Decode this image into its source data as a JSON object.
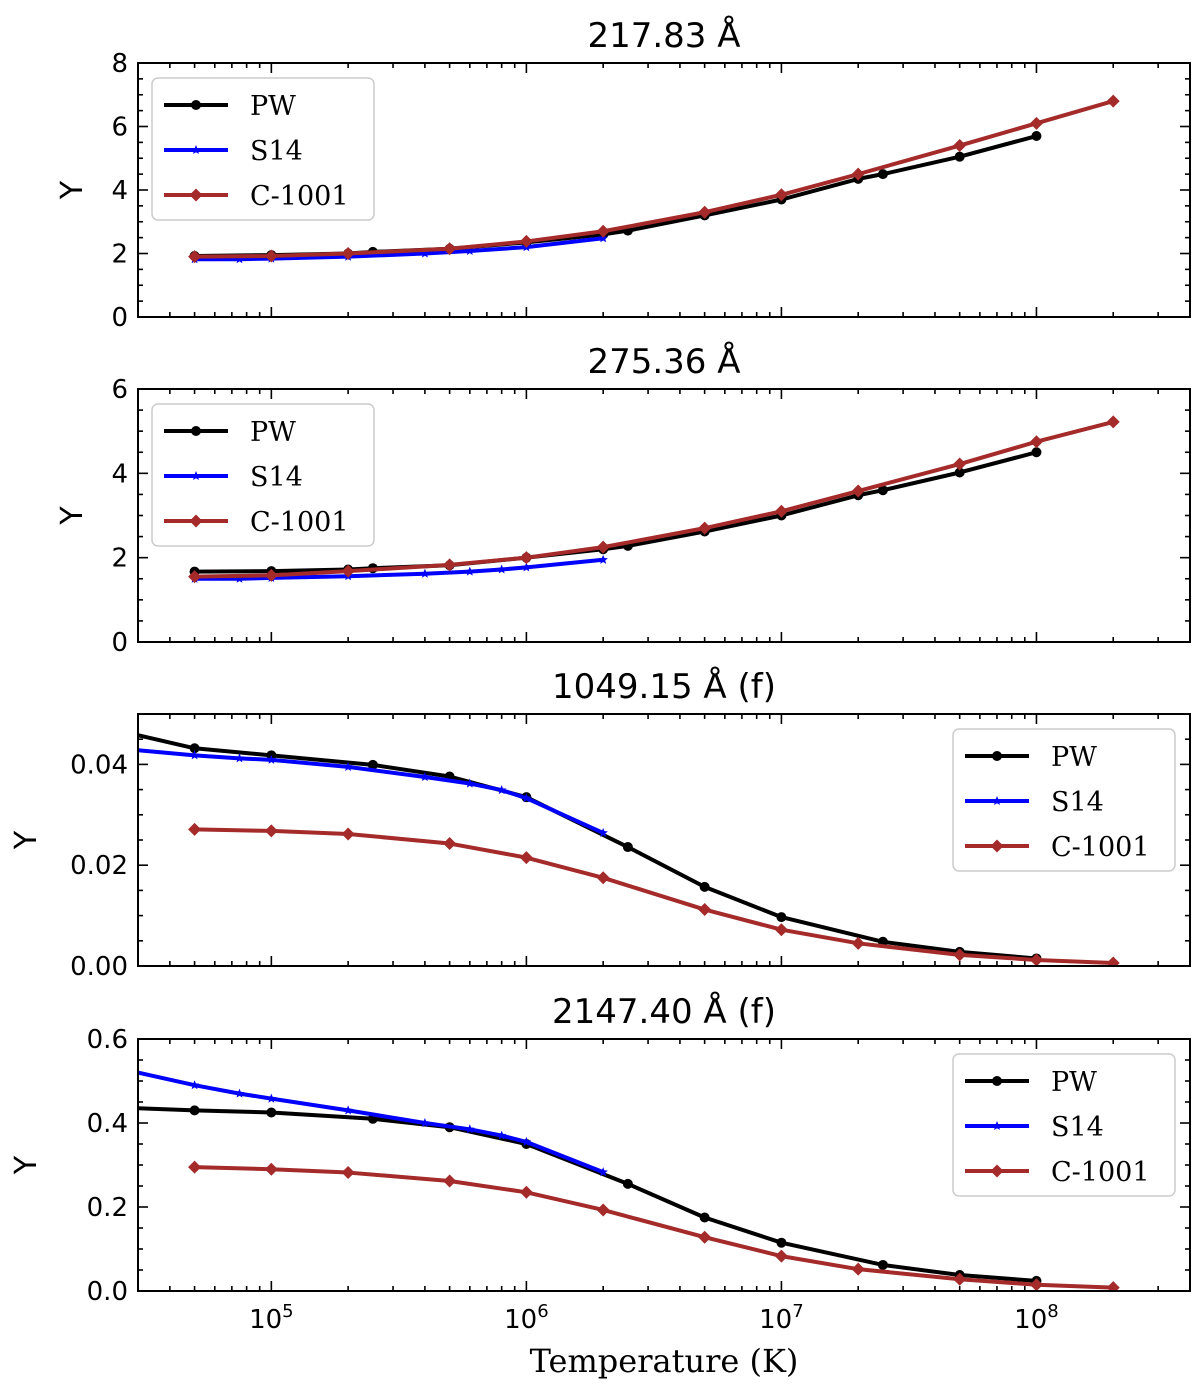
{
  "chart_data": [
    {
      "type": "line",
      "title": "217.83 Å",
      "ylabel": "Y",
      "xlabel": "",
      "xscale": "log",
      "xlim": [
        30000,
        400000000
      ],
      "ylim": [
        0,
        8
      ],
      "yticks": [
        0,
        2,
        4,
        6,
        8
      ],
      "ytick_labels": [
        "0",
        "2",
        "4",
        "6",
        "8"
      ],
      "legend": "upper-left",
      "series": [
        {
          "name": "PW",
          "color": "#000000",
          "marker": "circle",
          "x": [
            50000,
            100000,
            200000,
            250000,
            500000,
            1000000,
            2000000,
            2500000,
            5000000,
            10000000,
            20000000,
            25000000,
            50000000,
            100000000
          ],
          "y": [
            1.92,
            1.95,
            2.0,
            2.05,
            2.15,
            2.35,
            2.6,
            2.72,
            3.2,
            3.7,
            4.35,
            4.5,
            5.05,
            5.7
          ]
        },
        {
          "name": "S14",
          "color": "#0000ff",
          "marker": "star",
          "x": [
            50000,
            75000,
            100000,
            200000,
            400000,
            600000,
            1000000,
            2000000
          ],
          "y": [
            1.82,
            1.82,
            1.84,
            1.9,
            2.0,
            2.08,
            2.2,
            2.48
          ]
        },
        {
          "name": "C-1001",
          "color": "#a52a2a",
          "marker": "diamond",
          "x": [
            50000,
            100000,
            200000,
            500000,
            1000000,
            2000000,
            5000000,
            10000000,
            20000000,
            50000000,
            100000000,
            200000000
          ],
          "y": [
            1.9,
            1.92,
            2.0,
            2.15,
            2.38,
            2.7,
            3.3,
            3.85,
            4.5,
            5.4,
            6.1,
            6.8
          ]
        }
      ]
    },
    {
      "type": "line",
      "title": "275.36 Å",
      "ylabel": "Y",
      "xlabel": "",
      "xscale": "log",
      "xlim": [
        30000,
        400000000
      ],
      "ylim": [
        0,
        6
      ],
      "yticks": [
        0,
        2,
        4,
        6
      ],
      "ytick_labels": [
        "0",
        "2",
        "4",
        "6"
      ],
      "legend": "upper-left",
      "series": [
        {
          "name": "PW",
          "color": "#000000",
          "marker": "circle",
          "x": [
            50000,
            100000,
            200000,
            250000,
            500000,
            1000000,
            2000000,
            2500000,
            5000000,
            10000000,
            20000000,
            25000000,
            50000000,
            100000000
          ],
          "y": [
            1.67,
            1.68,
            1.72,
            1.75,
            1.82,
            2.0,
            2.2,
            2.28,
            2.62,
            3.0,
            3.48,
            3.6,
            4.02,
            4.5
          ]
        },
        {
          "name": "S14",
          "color": "#0000ff",
          "marker": "star",
          "x": [
            50000,
            75000,
            100000,
            200000,
            400000,
            600000,
            800000,
            1000000,
            2000000
          ],
          "y": [
            1.5,
            1.5,
            1.52,
            1.56,
            1.62,
            1.67,
            1.72,
            1.77,
            1.95
          ]
        },
        {
          "name": "C-1001",
          "color": "#a52a2a",
          "marker": "diamond",
          "x": [
            50000,
            100000,
            200000,
            500000,
            1000000,
            2000000,
            5000000,
            10000000,
            20000000,
            50000000,
            100000000,
            200000000
          ],
          "y": [
            1.55,
            1.58,
            1.68,
            1.83,
            2.0,
            2.25,
            2.7,
            3.1,
            3.58,
            4.22,
            4.75,
            5.22
          ]
        }
      ]
    },
    {
      "type": "line",
      "title": "1049.15 Å (f)",
      "ylabel": "Y",
      "xlabel": "",
      "xscale": "log",
      "xlim": [
        30000,
        400000000
      ],
      "ylim": [
        0,
        0.05
      ],
      "yticks": [
        0,
        0.02,
        0.04
      ],
      "ytick_labels": [
        "0.00",
        "0.02",
        "0.04"
      ],
      "legend": "upper-right",
      "series": [
        {
          "name": "PW",
          "color": "#000000",
          "marker": "circle",
          "x": [
            30000,
            50000,
            100000,
            250000,
            500000,
            1000000,
            2500000,
            5000000,
            10000000,
            25000000,
            50000000,
            100000000
          ],
          "y": [
            0.0458,
            0.0432,
            0.0418,
            0.0399,
            0.0376,
            0.0335,
            0.0236,
            0.0157,
            0.0097,
            0.0048,
            0.0028,
            0.0015
          ]
        },
        {
          "name": "S14",
          "color": "#0000ff",
          "marker": "star",
          "x": [
            30000,
            50000,
            75000,
            100000,
            200000,
            400000,
            600000,
            800000,
            1000000,
            2000000
          ],
          "y": [
            0.0428,
            0.0418,
            0.0412,
            0.0409,
            0.0395,
            0.0375,
            0.0362,
            0.0349,
            0.0333,
            0.0264
          ]
        },
        {
          "name": "C-1001",
          "color": "#a52a2a",
          "marker": "diamond",
          "x": [
            50000,
            100000,
            200000,
            500000,
            1000000,
            2000000,
            5000000,
            10000000,
            20000000,
            50000000,
            100000000,
            200000000
          ],
          "y": [
            0.0271,
            0.0268,
            0.0262,
            0.0243,
            0.0215,
            0.0175,
            0.0112,
            0.0072,
            0.0045,
            0.0022,
            0.0012,
            0.0006
          ]
        }
      ]
    },
    {
      "type": "line",
      "title": "2147.40 Å (f)",
      "ylabel": "Y",
      "xlabel": "Temperature (K)",
      "xscale": "log",
      "xlim": [
        30000,
        400000000
      ],
      "ylim": [
        0,
        0.6
      ],
      "yticks": [
        0,
        0.2,
        0.4,
        0.6
      ],
      "ytick_labels": [
        "0.0",
        "0.2",
        "0.4",
        "0.6"
      ],
      "xticks": [
        100000,
        1000000,
        10000000,
        100000000
      ],
      "xtick_labels": [
        {
          "base": "10",
          "exp": "5"
        },
        {
          "base": "10",
          "exp": "6"
        },
        {
          "base": "10",
          "exp": "7"
        },
        {
          "base": "10",
          "exp": "8"
        }
      ],
      "legend": "upper-right",
      "series": [
        {
          "name": "PW",
          "color": "#000000",
          "marker": "circle",
          "x": [
            30000,
            50000,
            100000,
            250000,
            500000,
            1000000,
            2500000,
            5000000,
            10000000,
            25000000,
            50000000,
            100000000
          ],
          "y": [
            0.435,
            0.43,
            0.425,
            0.41,
            0.39,
            0.35,
            0.255,
            0.175,
            0.115,
            0.062,
            0.038,
            0.024
          ]
        },
        {
          "name": "S14",
          "color": "#0000ff",
          "marker": "star",
          "x": [
            30000,
            50000,
            75000,
            100000,
            200000,
            400000,
            600000,
            800000,
            1000000,
            2000000
          ],
          "y": [
            0.52,
            0.49,
            0.47,
            0.458,
            0.43,
            0.4,
            0.385,
            0.37,
            0.355,
            0.283
          ]
        },
        {
          "name": "C-1001",
          "color": "#a52a2a",
          "marker": "diamond",
          "x": [
            50000,
            100000,
            200000,
            500000,
            1000000,
            2000000,
            5000000,
            10000000,
            20000000,
            50000000,
            100000000,
            200000000
          ],
          "y": [
            0.295,
            0.29,
            0.282,
            0.262,
            0.235,
            0.193,
            0.128,
            0.083,
            0.052,
            0.028,
            0.015,
            0.008
          ]
        }
      ]
    }
  ]
}
